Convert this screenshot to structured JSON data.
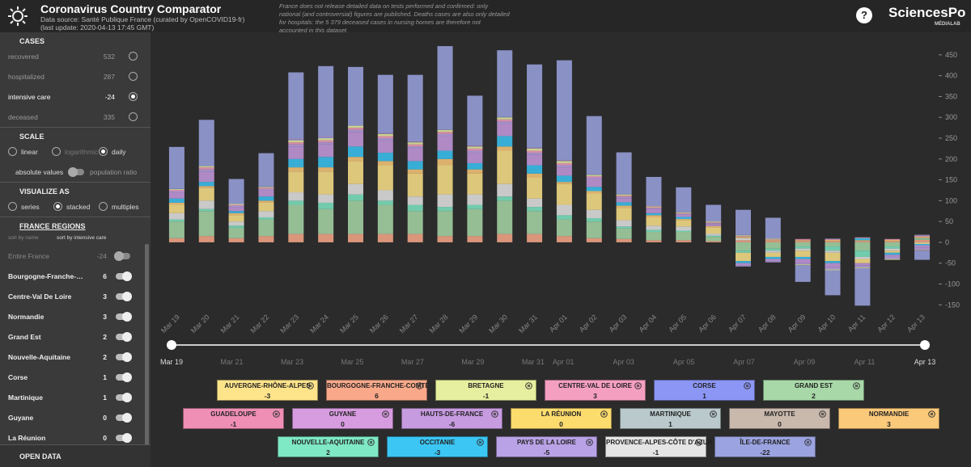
{
  "header": {
    "title": "Coronavirus Country Comparator",
    "source": "Data source: Santé Publique France (curated by OpenCOVID19-fr)",
    "update": "(last update: 2020-04-13 17:45 GMT)",
    "note": "France does not release detailed data on tests performed and confirmed: only national (and controversial) figures are published. Deaths cases are also only detailed for hospitals: the 5 379 deceased cases in nursing homes are therefore not accounted in this dataset.",
    "help": "?",
    "logo": "SciencesPo",
    "logo_sub": "MÉDIALAB"
  },
  "sidebar": {
    "cases": {
      "title": "CASES",
      "options": [
        {
          "label": "recovered",
          "value": 532
        },
        {
          "label": "hospitalized",
          "value": 287
        },
        {
          "label": "intensive care",
          "value": -24
        },
        {
          "label": "deceased",
          "value": 335
        }
      ]
    },
    "scale": {
      "title": "SCALE",
      "options": [
        "linear",
        "logarithmic",
        "daily"
      ],
      "toggle": [
        "absolute values",
        "population ratio"
      ]
    },
    "visualize": {
      "title": "VISUALIZE AS",
      "options": [
        "series",
        "stacked",
        "multiples"
      ]
    },
    "regions": {
      "title": "FRANCE REGIONS",
      "sort": [
        "sort by name",
        "sort by intensive care"
      ],
      "entire": {
        "label": "Entire France",
        "value": -24
      }
    },
    "open_data": "OPEN DATA"
  },
  "chart_data": {
    "type": "stacked-bar",
    "categories": [
      "Mar 19",
      "Mar 20",
      "Mar 21",
      "Mar 22",
      "Mar 23",
      "Mar 24",
      "Mar 25",
      "Mar 26",
      "Mar 27",
      "Mar 28",
      "Mar 29",
      "Mar 30",
      "Mar 31",
      "Apr 01",
      "Apr 02",
      "Apr 03",
      "Apr 04",
      "Apr 05",
      "Apr 06",
      "Apr 07",
      "Apr 08",
      "Apr 09",
      "Apr 10",
      "Apr 11",
      "Apr 12",
      "Apr 13"
    ],
    "ylim": [
      -165,
      475
    ],
    "yticks": [
      -150,
      -100,
      -50,
      0,
      50,
      100,
      150,
      200,
      250,
      300,
      350,
      400,
      450
    ],
    "series": [
      {
        "name": "AUVERGNE-RHÔNE-ALPES",
        "color": "#fde38a",
        "values": [
          20,
          30,
          15,
          20,
          50,
          55,
          55,
          60,
          55,
          70,
          50,
          80,
          50,
          50,
          40,
          30,
          20,
          15,
          15,
          -20,
          -10,
          -15,
          -20,
          -10,
          -5,
          -3
        ]
      },
      {
        "name": "BOURGOGNE-FRANCHE-COMTÉ",
        "color": "#f9a98a",
        "values": [
          10,
          15,
          10,
          15,
          20,
          20,
          20,
          20,
          20,
          15,
          15,
          20,
          20,
          15,
          10,
          8,
          5,
          5,
          3,
          5,
          3,
          3,
          3,
          3,
          3,
          6
        ]
      },
      {
        "name": "BRETAGNE",
        "color": "#e6ef9f",
        "values": [
          2,
          3,
          2,
          2,
          5,
          5,
          5,
          5,
          5,
          5,
          5,
          5,
          5,
          5,
          3,
          3,
          2,
          2,
          2,
          2,
          2,
          -2,
          -2,
          -2,
          -2,
          -1
        ]
      },
      {
        "name": "CENTRE-VAL DE LOIRE",
        "color": "#f59fc0",
        "values": [
          3,
          5,
          2,
          3,
          5,
          5,
          5,
          5,
          5,
          5,
          5,
          5,
          5,
          5,
          3,
          3,
          2,
          2,
          2,
          2,
          2,
          2,
          2,
          2,
          2,
          3
        ]
      },
      {
        "name": "CORSE",
        "color": "#8c96f5",
        "values": [
          1,
          1,
          0,
          1,
          2,
          2,
          1,
          1,
          1,
          1,
          1,
          1,
          1,
          1,
          1,
          1,
          0,
          0,
          0,
          1,
          0,
          0,
          1,
          0,
          0,
          1
        ]
      },
      {
        "name": "GRAND EST",
        "color": "#a8d8a8",
        "values": [
          40,
          60,
          25,
          40,
          70,
          60,
          80,
          70,
          55,
          60,
          65,
          80,
          55,
          40,
          40,
          25,
          20,
          20,
          10,
          -20,
          -15,
          -10,
          -10,
          -20,
          -10,
          2
        ]
      },
      {
        "name": "GUADELOUPE",
        "color": "#ef8fb5",
        "values": [
          0,
          0,
          0,
          0,
          1,
          1,
          0,
          1,
          1,
          0,
          1,
          0,
          1,
          1,
          0,
          0,
          1,
          0,
          0,
          0,
          0,
          1,
          0,
          0,
          0,
          -1
        ]
      },
      {
        "name": "GUYANE",
        "color": "#d79be0",
        "values": [
          0,
          0,
          0,
          0,
          0,
          0,
          0,
          0,
          0,
          0,
          0,
          0,
          0,
          0,
          0,
          0,
          0,
          0,
          0,
          0,
          0,
          0,
          0,
          0,
          0,
          0
        ]
      },
      {
        "name": "HAUTS-DE-FRANCE",
        "color": "#c79be0",
        "values": [
          15,
          25,
          10,
          15,
          30,
          30,
          35,
          30,
          30,
          35,
          25,
          30,
          25,
          20,
          20,
          10,
          10,
          5,
          5,
          -5,
          -5,
          -10,
          -10,
          -5,
          -5,
          -6
        ]
      },
      {
        "name": "LA RÉUNION",
        "color": "#fddc6e",
        "values": [
          0,
          0,
          0,
          0,
          0,
          0,
          0,
          0,
          0,
          0,
          0,
          0,
          0,
          0,
          0,
          0,
          0,
          0,
          0,
          0,
          0,
          0,
          0,
          0,
          0,
          0
        ]
      },
      {
        "name": "MARTINIQUE",
        "color": "#b9c9cc",
        "values": [
          0,
          0,
          0,
          0,
          0,
          0,
          0,
          0,
          0,
          0,
          0,
          0,
          0,
          0,
          0,
          0,
          0,
          0,
          0,
          0,
          0,
          0,
          0,
          0,
          0,
          1
        ]
      },
      {
        "name": "MAYOTTE",
        "color": "#c9b8ac",
        "values": [
          0,
          0,
          0,
          0,
          0,
          0,
          0,
          0,
          0,
          0,
          0,
          0,
          0,
          0,
          0,
          0,
          0,
          0,
          0,
          0,
          0,
          0,
          0,
          0,
          0,
          0
        ]
      },
      {
        "name": "NORMANDIE",
        "color": "#fbc97a",
        "values": [
          5,
          5,
          5,
          5,
          10,
          10,
          10,
          10,
          10,
          15,
          10,
          10,
          10,
          5,
          5,
          5,
          5,
          3,
          3,
          3,
          2,
          2,
          3,
          2,
          3,
          3
        ]
      },
      {
        "name": "NOUVELLE-AQUITAINE",
        "color": "#7fe8c4",
        "values": [
          5,
          5,
          5,
          5,
          10,
          15,
          15,
          10,
          15,
          10,
          10,
          10,
          10,
          10,
          8,
          5,
          5,
          3,
          3,
          -5,
          -5,
          -5,
          -10,
          -15,
          -5,
          2
        ]
      },
      {
        "name": "OCCITANIE",
        "color": "#3bc6f4",
        "values": [
          10,
          10,
          5,
          10,
          20,
          25,
          25,
          20,
          20,
          20,
          15,
          25,
          20,
          15,
          10,
          8,
          5,
          5,
          0,
          -5,
          -5,
          -5,
          -5,
          5,
          -5,
          -3
        ]
      },
      {
        "name": "PAYS DE LA LOIRE",
        "color": "#b9a2e6",
        "values": [
          3,
          5,
          3,
          3,
          5,
          5,
          5,
          5,
          5,
          5,
          5,
          5,
          5,
          5,
          3,
          3,
          2,
          2,
          2,
          -3,
          -3,
          -3,
          -5,
          -5,
          -5,
          -5
        ]
      },
      {
        "name": "PROVENCE-ALPES-CÔTE D'AZUR",
        "color": "#e5e5e5",
        "values": [
          15,
          20,
          10,
          15,
          20,
          20,
          25,
          25,
          20,
          30,
          25,
          30,
          20,
          25,
          20,
          15,
          10,
          10,
          5,
          5,
          -5,
          -5,
          -5,
          -5,
          -5,
          -1
        ]
      },
      {
        "name": "ÎLE-DE-FRANCE",
        "color": "#9ba3e0",
        "values": [
          100,
          110,
          60,
          80,
          160,
          170,
          140,
          140,
          160,
          200,
          120,
          160,
          200,
          240,
          140,
          100,
          70,
          60,
          40,
          60,
          50,
          -40,
          -60,
          -90,
          0,
          -22
        ]
      }
    ]
  }
}
